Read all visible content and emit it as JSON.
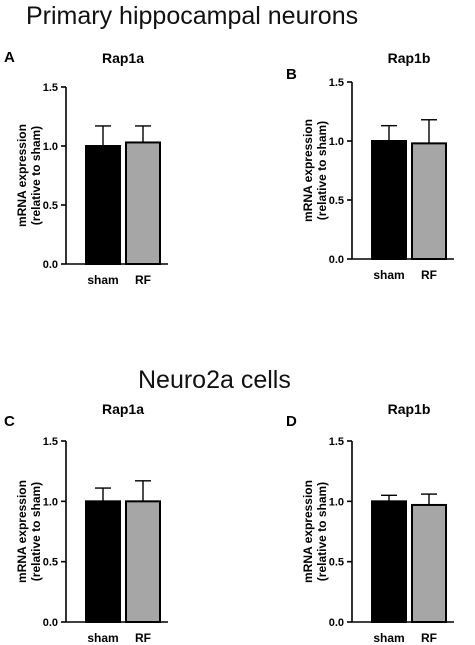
{
  "headings": {
    "top": "Primary hippocampal neurons",
    "bottom": "Neuro2a cells"
  },
  "colors": {
    "sham": "#000000",
    "rf": "#a6a6a6"
  },
  "chart_data": [
    {
      "type": "bar",
      "panel": "A",
      "title": "Rap1a",
      "categories": [
        "sham",
        "RF"
      ],
      "values": [
        1.0,
        1.03
      ],
      "errors": [
        0.17,
        0.14
      ],
      "ylabel_line1": "mRNA expression",
      "ylabel_line2": "(relative to sham)",
      "ylim": [
        0,
        1.5
      ],
      "yticks": [
        "0.0",
        "0.5",
        "1.0",
        "1.5"
      ]
    },
    {
      "type": "bar",
      "panel": "B",
      "title": "Rap1b",
      "categories": [
        "sham",
        "RF"
      ],
      "values": [
        1.0,
        0.98
      ],
      "errors": [
        0.13,
        0.2
      ],
      "ylabel_line1": "mRNA expression",
      "ylabel_line2": "(relative to sham)",
      "ylim": [
        0,
        1.5
      ],
      "yticks": [
        "0.0",
        "0.5",
        "1.0",
        "1.5"
      ]
    },
    {
      "type": "bar",
      "panel": "C",
      "title": "Rap1a",
      "categories": [
        "sham",
        "RF"
      ],
      "values": [
        1.0,
        1.0
      ],
      "errors": [
        0.11,
        0.17
      ],
      "ylabel_line1": "mRNA expression",
      "ylabel_line2": "(relative to sham)",
      "ylim": [
        0,
        1.5
      ],
      "yticks": [
        "0.0",
        "0.5",
        "1.0",
        "1.5"
      ]
    },
    {
      "type": "bar",
      "panel": "D",
      "title": "Rap1b",
      "categories": [
        "sham",
        "RF"
      ],
      "values": [
        1.0,
        0.97
      ],
      "errors": [
        0.05,
        0.09
      ],
      "ylabel_line1": "mRNA expression",
      "ylabel_line2": "(relative to sham)",
      "ylim": [
        0,
        1.5
      ],
      "yticks": [
        "0.0",
        "0.5",
        "1.0",
        "1.5"
      ]
    }
  ]
}
